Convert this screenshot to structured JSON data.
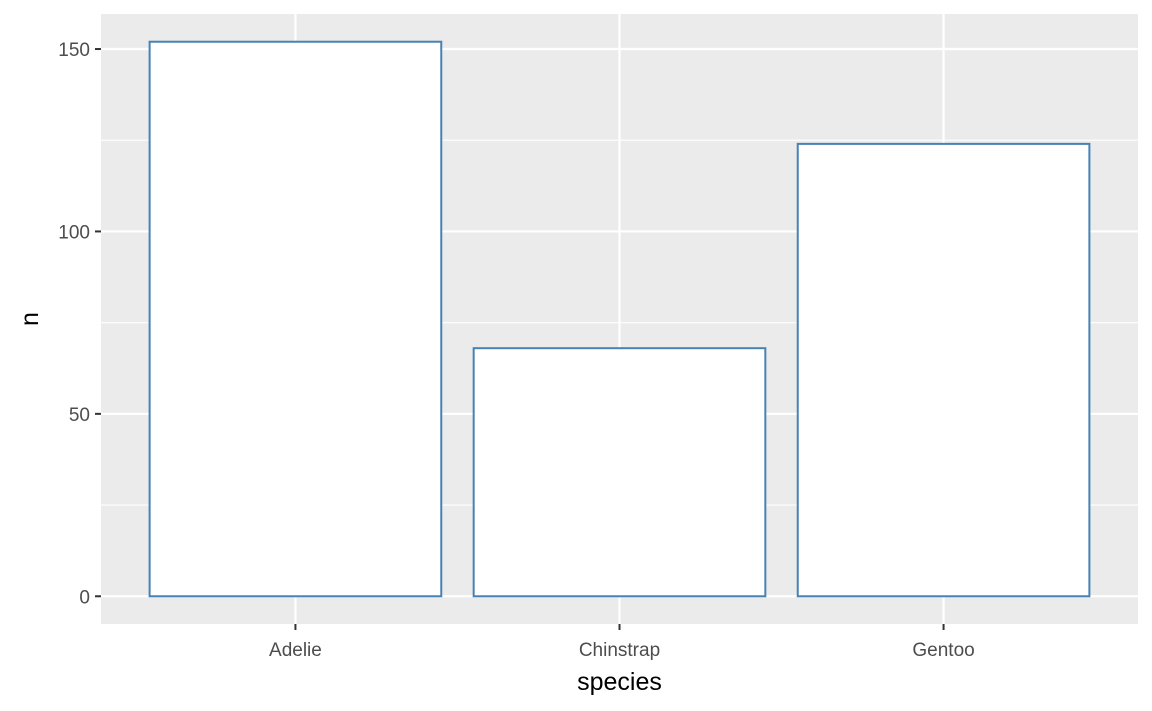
{
  "chart_data": {
    "type": "bar",
    "categories": [
      "Adelie",
      "Chinstrap",
      "Gentoo"
    ],
    "values": [
      152,
      68,
      124
    ],
    "xlabel": "species",
    "ylabel": "n",
    "ylim": [
      -7.6,
      159.6
    ],
    "yticks": [
      0,
      50,
      100,
      150
    ],
    "ytick_labels": [
      "0",
      "50",
      "100",
      "150"
    ],
    "grid": true,
    "bar_fill": "#ffffff",
    "bar_outline": "#4682b4",
    "panel_background": "#ebebeb",
    "grid_color": "#ffffff",
    "tick_color": "#333333"
  }
}
